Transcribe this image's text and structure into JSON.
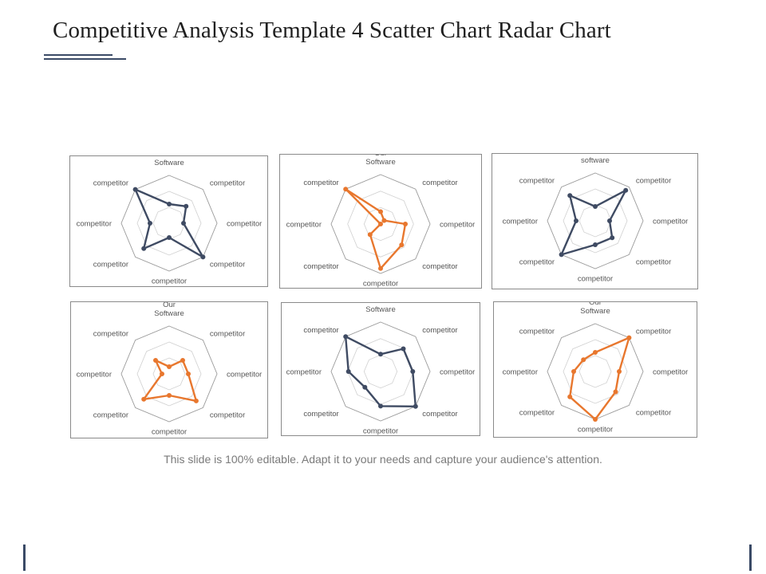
{
  "title": "Competitive Analysis Template 4 Scatter Chart Radar Chart",
  "caption": "This slide is 100% editable. Adapt it to your needs and capture your audience's attention.",
  "colors": {
    "navy": "#3f4b63",
    "orange": "#e8772e",
    "grid": "#d0d0d0",
    "outer": "#8a8a8a"
  },
  "chart_data": [
    {
      "type": "radar",
      "color": "navy",
      "categories": [
        "Our Software",
        "competitor",
        "competitor",
        "competitor",
        "competitor",
        "competitor",
        "competitor",
        "competitor"
      ],
      "values": [
        40,
        50,
        30,
        100,
        30,
        75,
        40,
        100
      ]
    },
    {
      "type": "radar",
      "color": "orange",
      "categories": [
        "Our Software",
        "competitor",
        "competitor",
        "competitor",
        "competitor",
        "competitor",
        "competitor",
        "competitor"
      ],
      "values": [
        25,
        10,
        50,
        60,
        90,
        30,
        0,
        100
      ]
    },
    {
      "type": "radar",
      "color": "navy",
      "categories": [
        "Our software",
        "competitor",
        "competitor",
        "competitor",
        "competitor",
        "competitor",
        "competitor",
        "competitor"
      ],
      "values": [
        30,
        90,
        30,
        50,
        50,
        100,
        40,
        75
      ]
    },
    {
      "type": "radar",
      "color": "orange",
      "categories": [
        "Our Software",
        "competitor",
        "competitor",
        "competitor",
        "competitor",
        "competitor",
        "competitor",
        "competitor"
      ],
      "values": [
        15,
        40,
        40,
        80,
        45,
        75,
        15,
        40
      ]
    },
    {
      "type": "radar",
      "color": "navy",
      "categories": [
        "Our Software",
        "competitor",
        "competitor",
        "competitor",
        "competitor",
        "competitor",
        "competitor",
        "competitor"
      ],
      "values": [
        35,
        65,
        65,
        100,
        70,
        45,
        65,
        100
      ]
    },
    {
      "type": "radar",
      "color": "orange",
      "categories": [
        "Our Software",
        "competitor",
        "competitor",
        "competitor",
        "competitor",
        "competitor",
        "competitor",
        "competitor"
      ],
      "values": [
        40,
        100,
        50,
        60,
        100,
        75,
        45,
        35
      ]
    }
  ]
}
